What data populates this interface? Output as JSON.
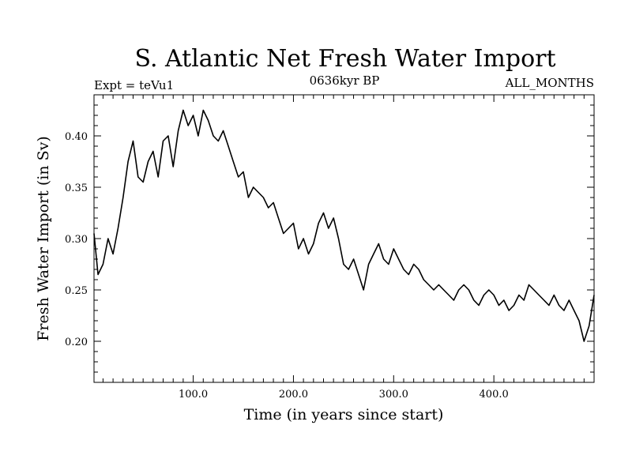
{
  "chart_data": {
    "type": "line",
    "title": "S. Atlantic Net Fresh Water Import",
    "subtitle_left": "Expt = teVu1",
    "subtitle_center": "0636kyr BP",
    "subtitle_right": "ALL_MONTHS",
    "xlabel": "Time (in years since start)",
    "ylabel": "Fresh Water Import (in Sv)",
    "xlim": [
      1,
      500
    ],
    "ylim": [
      0.16,
      0.44
    ],
    "x_ticks": [
      100,
      200,
      300,
      400
    ],
    "x_tick_labels": [
      "100.0",
      "200.0",
      "300.0",
      "400.0"
    ],
    "y_ticks": [
      0.2,
      0.25,
      0.3,
      0.35,
      0.4
    ],
    "y_tick_labels": [
      "0.20",
      "0.25",
      "0.30",
      "0.35",
      "0.40"
    ],
    "grid": false,
    "line_color": "#000000",
    "series": [
      {
        "x": [
          1,
          5,
          10,
          15,
          20,
          25,
          30,
          35,
          40,
          45,
          50,
          55,
          60,
          65,
          70,
          75,
          80,
          85,
          90,
          95,
          100,
          105,
          110,
          115,
          120,
          125,
          130,
          135,
          140,
          145,
          150,
          155,
          160,
          165,
          170,
          175,
          180,
          185,
          190,
          195,
          200,
          205,
          210,
          215,
          220,
          225,
          230,
          235,
          240,
          245,
          250,
          255,
          260,
          265,
          270,
          275,
          280,
          285,
          290,
          295,
          300,
          305,
          310,
          315,
          320,
          325,
          330,
          335,
          340,
          345,
          350,
          355,
          360,
          365,
          370,
          375,
          380,
          385,
          390,
          395,
          400,
          405,
          410,
          415,
          420,
          425,
          430,
          435,
          440,
          445,
          450,
          455,
          460,
          465,
          470,
          475,
          480,
          485,
          490,
          495,
          500
        ],
        "values": [
          0.305,
          0.265,
          0.275,
          0.3,
          0.285,
          0.31,
          0.34,
          0.375,
          0.395,
          0.36,
          0.355,
          0.375,
          0.385,
          0.36,
          0.395,
          0.4,
          0.37,
          0.405,
          0.425,
          0.41,
          0.42,
          0.4,
          0.425,
          0.415,
          0.4,
          0.395,
          0.405,
          0.39,
          0.375,
          0.36,
          0.365,
          0.34,
          0.35,
          0.345,
          0.34,
          0.33,
          0.335,
          0.32,
          0.305,
          0.31,
          0.315,
          0.29,
          0.3,
          0.285,
          0.295,
          0.315,
          0.325,
          0.31,
          0.32,
          0.3,
          0.275,
          0.27,
          0.28,
          0.265,
          0.25,
          0.275,
          0.285,
          0.295,
          0.28,
          0.275,
          0.29,
          0.28,
          0.27,
          0.265,
          0.275,
          0.27,
          0.26,
          0.255,
          0.25,
          0.255,
          0.25,
          0.245,
          0.24,
          0.25,
          0.255,
          0.25,
          0.24,
          0.235,
          0.245,
          0.25,
          0.245,
          0.235,
          0.24,
          0.23,
          0.235,
          0.245,
          0.24,
          0.255,
          0.25,
          0.245,
          0.24,
          0.235,
          0.245,
          0.235,
          0.23,
          0.24,
          0.23,
          0.22,
          0.2,
          0.215,
          0.245
        ]
      }
    ]
  }
}
